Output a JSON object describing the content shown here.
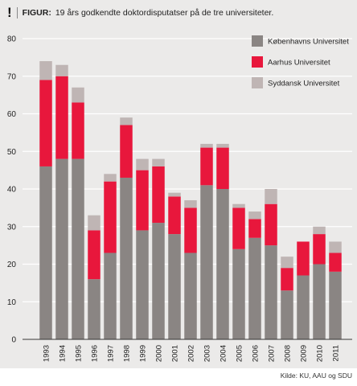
{
  "header": {
    "figure_label": "FIGUR:",
    "title": "19 års godkendte doktordisputatser på de tre universiteter."
  },
  "source": "Kilde: KU, AAU og SDU",
  "colors": {
    "kobenhavn": "#8a8583",
    "aarhus": "#e8173c",
    "syddansk": "#bfb5b4",
    "panel_bg": "#ebeae9",
    "grid": "#ffffff"
  },
  "chart_data": {
    "type": "bar",
    "stacked": true,
    "title": "19 års godkendte doktordisputatser på de tre universiteter.",
    "categories": [
      "1993",
      "1994",
      "1995",
      "1996",
      "1997",
      "1998",
      "1999",
      "2000",
      "2001",
      "2002",
      "2003",
      "2004",
      "2005",
      "2006",
      "2007",
      "2008",
      "2009",
      "2010",
      "2011"
    ],
    "series": [
      {
        "name": "Københavns Universitet",
        "color": "#8a8583",
        "values": [
          46,
          48,
          48,
          16,
          23,
          43,
          29,
          31,
          28,
          23,
          41,
          40,
          24,
          27,
          25,
          13,
          17,
          20,
          18
        ]
      },
      {
        "name": "Aarhus Universitet",
        "color": "#e8173c",
        "values": [
          23,
          22,
          15,
          13,
          19,
          14,
          16,
          15,
          10,
          12,
          10,
          11,
          11,
          5,
          11,
          6,
          9,
          8,
          5
        ]
      },
      {
        "name": "Syddansk Universitet",
        "color": "#bfb5b4",
        "values": [
          5,
          3,
          4,
          4,
          2,
          2,
          3,
          2,
          1,
          2,
          1,
          1,
          1,
          2,
          4,
          3,
          0,
          2,
          3
        ]
      }
    ],
    "yticks": [
      0,
      10,
      20,
      30,
      40,
      50,
      60,
      70,
      80
    ],
    "ylim": [
      0,
      80
    ],
    "grid": true,
    "legend_position": "top-right"
  }
}
